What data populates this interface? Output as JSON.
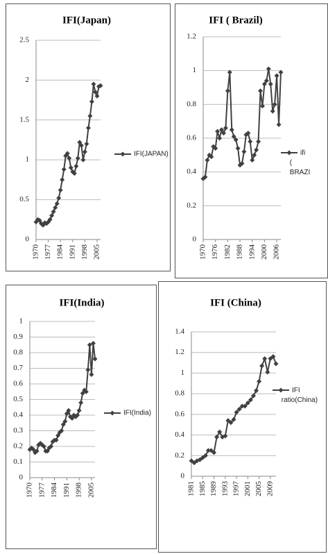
{
  "chart_data": [
    {
      "type": "line",
      "title": "IFI(Japan)",
      "x": [
        1970,
        1971,
        1972,
        1973,
        1974,
        1975,
        1976,
        1977,
        1978,
        1979,
        1980,
        1981,
        1982,
        1983,
        1984,
        1985,
        1986,
        1987,
        1988,
        1989,
        1990,
        1991,
        1992,
        1993,
        1994,
        1995,
        1996,
        1997,
        1998,
        1999,
        2000,
        2001,
        2002,
        2003,
        2004,
        2005,
        2006,
        2007
      ],
      "series": [
        {
          "name": "IFI(JAPAN)",
          "color": "#404040",
          "values": [
            0.22,
            0.25,
            0.24,
            0.2,
            0.18,
            0.21,
            0.2,
            0.22,
            0.25,
            0.3,
            0.35,
            0.4,
            0.45,
            0.52,
            0.62,
            0.75,
            0.88,
            1.05,
            1.08,
            1.02,
            0.9,
            0.85,
            0.83,
            0.92,
            1.02,
            1.22,
            1.18,
            1.0,
            1.1,
            1.2,
            1.4,
            1.55,
            1.73,
            1.95,
            1.85,
            1.8,
            1.92,
            1.93
          ]
        }
      ],
      "xlim": [
        1970,
        2007
      ],
      "xticks": [
        1970,
        1977,
        1984,
        1991,
        1998,
        2005
      ],
      "ylim": [
        0,
        2.5
      ],
      "yticks": [
        0,
        0.5,
        1,
        1.5,
        2,
        2.5
      ],
      "grid": true
    },
    {
      "type": "line",
      "title": "IFI ( Brazil)",
      "x": [
        1970,
        1971,
        1972,
        1973,
        1974,
        1975,
        1976,
        1977,
        1978,
        1979,
        1980,
        1981,
        1982,
        1983,
        1984,
        1985,
        1986,
        1987,
        1988,
        1989,
        1990,
        1991,
        1992,
        1993,
        1994,
        1995,
        1996,
        1997,
        1998,
        1999,
        2000,
        2001,
        2002,
        2003,
        2004,
        2005,
        2006,
        2007,
        2008
      ],
      "series": [
        {
          "name": "ifi ( BRAZI",
          "color": "#404040",
          "values": [
            0.36,
            0.37,
            0.47,
            0.5,
            0.49,
            0.55,
            0.54,
            0.64,
            0.6,
            0.65,
            0.63,
            0.66,
            0.88,
            0.99,
            0.65,
            0.61,
            0.59,
            0.54,
            0.44,
            0.45,
            0.52,
            0.62,
            0.63,
            0.58,
            0.47,
            0.5,
            0.53,
            0.58,
            0.88,
            0.79,
            0.92,
            0.94,
            1.01,
            0.92,
            0.76,
            0.8,
            0.97,
            0.68,
            0.99
          ]
        }
      ],
      "xlim": [
        1970,
        2008
      ],
      "xticks": [
        1970,
        1976,
        1982,
        1988,
        1994,
        2000,
        2006
      ],
      "ylim": [
        0,
        1.2
      ],
      "yticks": [
        0,
        0.2,
        0.4,
        0.6,
        0.8,
        1,
        1.2
      ],
      "grid": true
    },
    {
      "type": "line",
      "title": "IFI(India)",
      "x": [
        1970,
        1971,
        1972,
        1973,
        1974,
        1975,
        1976,
        1977,
        1978,
        1979,
        1980,
        1981,
        1982,
        1983,
        1984,
        1985,
        1986,
        1987,
        1988,
        1989,
        1990,
        1991,
        1992,
        1993,
        1994,
        1995,
        1996,
        1997,
        1998,
        1999,
        2000,
        2001,
        2002,
        2003,
        2004,
        2005,
        2006,
        2007
      ],
      "series": [
        {
          "name": "IFI(India)",
          "color": "#404040",
          "values": [
            0.18,
            0.19,
            0.18,
            0.16,
            0.17,
            0.21,
            0.22,
            0.21,
            0.2,
            0.17,
            0.17,
            0.19,
            0.2,
            0.23,
            0.24,
            0.24,
            0.27,
            0.29,
            0.3,
            0.34,
            0.36,
            0.41,
            0.43,
            0.39,
            0.38,
            0.4,
            0.39,
            0.4,
            0.43,
            0.48,
            0.54,
            0.56,
            0.55,
            0.69,
            0.85,
            0.66,
            0.86,
            0.76
          ]
        }
      ],
      "xlim": [
        1970,
        2007
      ],
      "xticks": [
        1970,
        1977,
        1984,
        1991,
        1998,
        2005
      ],
      "ylim": [
        0,
        1
      ],
      "yticks": [
        0,
        0.1,
        0.2,
        0.3,
        0.4,
        0.5,
        0.6,
        0.7,
        0.8,
        0.9,
        1
      ],
      "grid": true
    },
    {
      "type": "line",
      "title": "IFI (China)",
      "x": [
        1981,
        1982,
        1983,
        1984,
        1985,
        1986,
        1987,
        1988,
        1989,
        1990,
        1991,
        1992,
        1993,
        1994,
        1995,
        1996,
        1997,
        1998,
        1999,
        2000,
        2001,
        2002,
        2003,
        2004,
        2005,
        2006,
        2007,
        2008,
        2009,
        2010,
        2011
      ],
      "series": [
        {
          "name": "IFI ratio(China)",
          "color": "#404040",
          "values": [
            0.15,
            0.13,
            0.15,
            0.16,
            0.18,
            0.2,
            0.25,
            0.25,
            0.23,
            0.38,
            0.43,
            0.38,
            0.39,
            0.54,
            0.52,
            0.55,
            0.62,
            0.65,
            0.68,
            0.68,
            0.71,
            0.74,
            0.78,
            0.83,
            0.92,
            1.07,
            1.14,
            1.01,
            1.14,
            1.16,
            1.09
          ]
        }
      ],
      "xlim": [
        1981,
        2011
      ],
      "xticks": [
        1981,
        1985,
        1989,
        1993,
        1997,
        2001,
        2005,
        2009
      ],
      "ylim": [
        0,
        1.4
      ],
      "yticks": [
        0,
        0.2,
        0.4,
        0.6,
        0.8,
        1,
        1.2,
        1.4
      ],
      "grid": true
    }
  ]
}
